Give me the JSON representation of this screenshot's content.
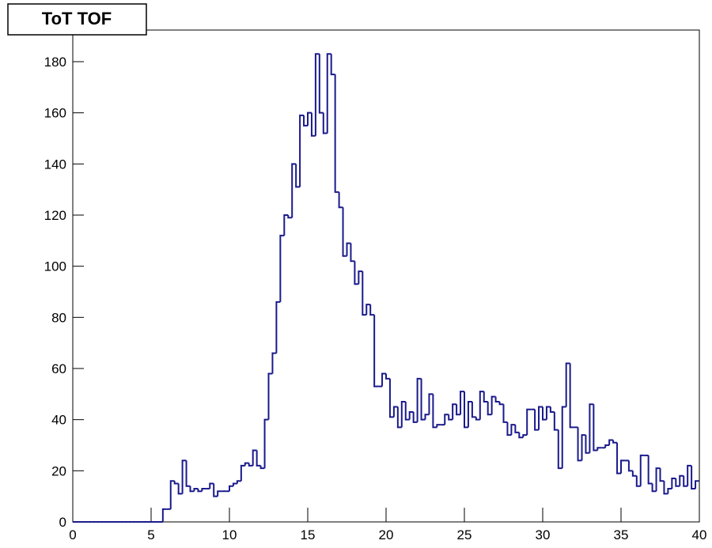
{
  "chart_data": {
    "type": "histogram",
    "title": "ToT TOF",
    "color": "#1a1a8c",
    "bins": [
      0,
      0.25,
      0.5,
      0.75,
      1,
      1.25,
      1.5,
      1.75,
      2,
      2.25,
      2.5,
      2.75,
      3,
      3.25,
      3.5,
      3.75,
      4,
      4.25,
      4.5,
      4.75,
      5,
      5.25,
      5.5,
      5.75,
      6,
      6.25,
      6.5,
      6.75,
      7,
      7.25,
      7.5,
      7.75,
      8,
      8.25,
      8.5,
      8.75,
      9,
      9.25,
      9.5,
      9.75,
      10,
      10.25,
      10.5,
      10.75,
      11,
      11.25,
      11.5,
      11.75,
      12,
      12.25,
      12.5,
      12.75,
      13,
      13.25,
      13.5,
      13.75,
      14,
      14.25,
      14.5,
      14.75,
      15,
      15.25,
      15.5,
      15.75,
      16,
      16.25,
      16.5,
      16.75,
      17,
      17.25,
      17.5,
      17.75,
      18,
      18.25,
      18.5,
      18.75,
      19,
      19.25,
      19.5,
      19.75,
      20,
      20.25,
      20.5,
      20.75,
      21,
      21.25,
      21.5,
      21.75,
      22,
      22.25,
      22.5,
      22.75,
      23,
      23.25,
      23.5,
      23.75,
      24,
      24.25,
      24.5,
      24.75,
      25,
      25.25,
      25.5,
      25.75,
      26,
      26.25,
      26.5,
      26.75,
      27,
      27.25,
      27.5,
      27.75,
      28,
      28.25,
      28.5,
      28.75,
      29,
      29.25,
      29.5,
      29.75,
      30,
      30.25,
      30.5,
      30.75,
      31,
      31.25,
      31.5,
      31.75,
      32,
      32.25,
      32.5,
      32.75,
      33,
      33.25,
      33.5,
      33.75,
      34,
      34.25,
      34.5,
      34.75,
      35,
      35.25,
      35.5,
      35.75,
      36,
      36.25,
      36.5,
      36.75,
      37,
      37.25,
      37.5,
      37.75,
      38,
      38.25,
      38.5,
      38.75,
      39,
      39.25,
      39.5,
      39.75,
      40
    ],
    "values": [
      0,
      0,
      0,
      0,
      0,
      0,
      0,
      0,
      0,
      0,
      0,
      0,
      0,
      0,
      0,
      0,
      0,
      0,
      0,
      0,
      0,
      0,
      0,
      5,
      5,
      16,
      15,
      11,
      24,
      14,
      12,
      13,
      12,
      13,
      13,
      15,
      10,
      12,
      12,
      12,
      14,
      15,
      16,
      22,
      23,
      22,
      28,
      22,
      21,
      40,
      58,
      66,
      86,
      112,
      120,
      119,
      140,
      131,
      159,
      155,
      160,
      151,
      183,
      160,
      152,
      183,
      175,
      129,
      123,
      104,
      109,
      102,
      93,
      98,
      81,
      85,
      81,
      53,
      53,
      58,
      56,
      41,
      45,
      37,
      47,
      40,
      43,
      39,
      56,
      40,
      42,
      50,
      37,
      38,
      38,
      42,
      40,
      46,
      42,
      51,
      37,
      47,
      41,
      40,
      51,
      47,
      42,
      49,
      47,
      46,
      39,
      34,
      38,
      35,
      33,
      34,
      44,
      44,
      36,
      45,
      40,
      45,
      43,
      36,
      21,
      45,
      62,
      37,
      37,
      24,
      34,
      27,
      46,
      28,
      29,
      29,
      30,
      32,
      31,
      19,
      24,
      24,
      20,
      18,
      14,
      26,
      26,
      15,
      12,
      21,
      16,
      11,
      13,
      17,
      14,
      18,
      14,
      22,
      13,
      16
    ],
    "xlim": [
      0,
      40
    ],
    "xticks": [
      0,
      5,
      10,
      15,
      20,
      25,
      30,
      35,
      40
    ],
    "ylim": [
      0,
      180
    ],
    "yticks": [
      0,
      20,
      40,
      60,
      80,
      100,
      120,
      140,
      160,
      180
    ]
  }
}
